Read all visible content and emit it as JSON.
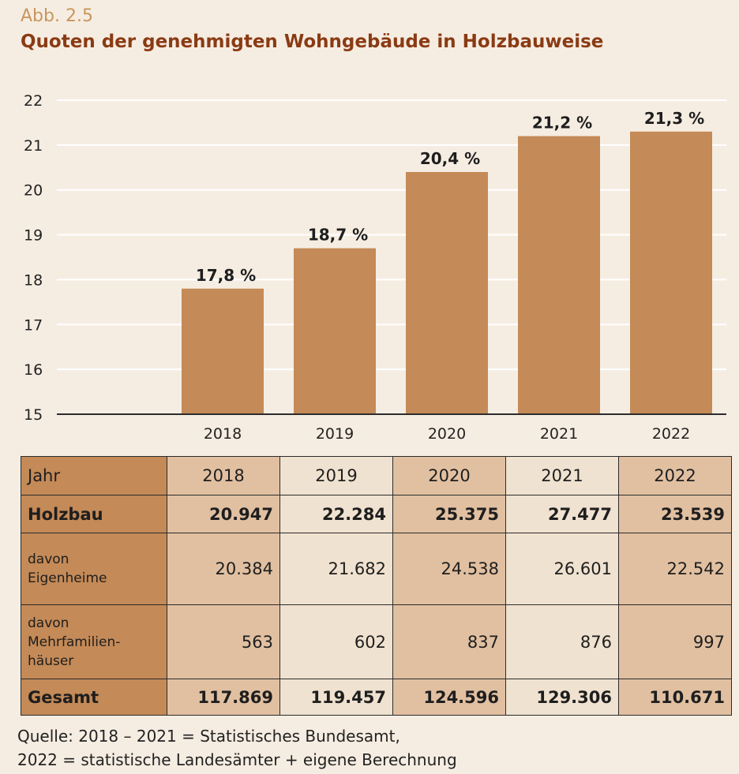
{
  "figure": {
    "number": "Abb. 2.5",
    "title": "Quoten der genehmigten Wohngebäude in Holzbauweise"
  },
  "chart_data": {
    "type": "bar",
    "categories": [
      "2018",
      "2019",
      "2020",
      "2021",
      "2022"
    ],
    "values": [
      17.8,
      18.7,
      20.4,
      21.2,
      21.3
    ],
    "data_labels": [
      "17,8 %",
      "18,7 %",
      "20,4 %",
      "21,2 %",
      "21,3 %"
    ],
    "yticks": [
      "15",
      "16",
      "17",
      "18",
      "19",
      "20",
      "21",
      "22"
    ],
    "ylim": [
      15,
      22
    ],
    "grid": true,
    "bar_color": "#c48a57",
    "title": "Quoten der genehmigten Wohngebäude in Holzbauweise"
  },
  "table": {
    "header": {
      "label": "Jahr",
      "years": [
        "2018",
        "2019",
        "2020",
        "2021",
        "2022"
      ]
    },
    "rows": [
      {
        "label": "Holzbau",
        "values": [
          "20.947",
          "22.284",
          "25.375",
          "27.477",
          "23.539"
        ]
      },
      {
        "label_lines": [
          "davon",
          "Eigenheime"
        ],
        "values": [
          "20.384",
          "21.682",
          "24.538",
          "26.601",
          "22.542"
        ]
      },
      {
        "label_lines": [
          "davon",
          "Mehrfamilien-",
          "häuser"
        ],
        "values": [
          "563",
          "602",
          "837",
          "876",
          "997"
        ]
      },
      {
        "label": "Gesamt",
        "values": [
          "117.869",
          "119.457",
          "124.596",
          "129.306",
          "110.671"
        ]
      }
    ]
  },
  "source": {
    "line1": "Quelle: 2018 – 2021 = Statistisches Bundesamt,",
    "line2": "2022 = statistische Landesämter + eigene Berechnung"
  },
  "colors": {
    "background": "#f6ede2",
    "accent_tab": "#e8833a",
    "title": "#8a3b14",
    "figure_number": "#c8965e",
    "bar": "#c48a57",
    "table_dark": "#c48a57",
    "table_mid": "#e1c0a1",
    "table_light": "#f0e2d0"
  }
}
